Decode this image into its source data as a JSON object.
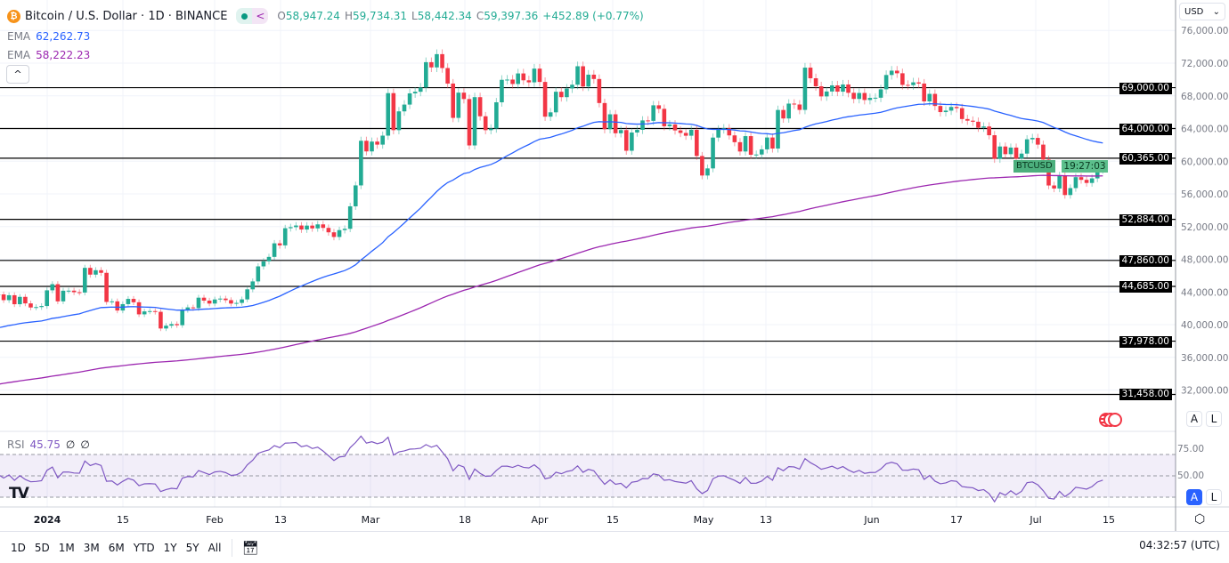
{
  "header": {
    "title": "Bitcoin / U.S. Dollar",
    "sep": "·",
    "interval": "1D",
    "exchange": "BINANCE",
    "ohlc": {
      "o_label": "O",
      "o": "58,947.24",
      "h_label": "H",
      "h": "59,734.31",
      "l_label": "L",
      "l": "58,442.34",
      "c_label": "C",
      "c": "59,397.36",
      "change": "+452.89 (+0.77%)"
    }
  },
  "indicators": {
    "ema1": {
      "label": "EMA",
      "value": "62,262.73",
      "color": "#2962ff"
    },
    "ema2": {
      "label": "EMA",
      "value": "58,222.23",
      "color": "#9c27b0"
    },
    "rsi": {
      "label": "RSI",
      "value": "45.75",
      "extra1": "∅",
      "extra2": "∅",
      "color": "#7e57c2"
    }
  },
  "price_axis": {
    "currency": "USD",
    "ticks": [
      "76,000.00",
      "72,000.00",
      "68,000.00",
      "64,000.00",
      "60,000.00",
      "56,000.00",
      "52,000.00",
      "48,000.00",
      "44,000.00",
      "40,000.00",
      "36,000.00",
      "32,000.00"
    ],
    "symbol_label": "BTCUSD",
    "countdown": "19:27:03",
    "auto": "A",
    "log": "L"
  },
  "rsi_axis": {
    "ticks": [
      "75.00",
      "50.00"
    ],
    "auto": "A",
    "log": "L"
  },
  "levels": [
    "69,000.00",
    "64,000.00",
    "60,365.00",
    "52,884.00",
    "47,860.00",
    "44,685.00",
    "37,978.00",
    "31,458.00"
  ],
  "time_axis": [
    "2024",
    "15",
    "Feb",
    "13",
    "Mar",
    "18",
    "Apr",
    "15",
    "May",
    "13",
    "Jun",
    "17",
    "Jul",
    "15"
  ],
  "ranges": [
    "1D",
    "5D",
    "1M",
    "3M",
    "6M",
    "YTD",
    "1Y",
    "5Y",
    "All"
  ],
  "clock": "04:32:57 (UTC)",
  "colors": {
    "up": "#22ab94",
    "down": "#f23645",
    "ema1": "#2962ff",
    "ema2": "#9c27b0",
    "rsi": "#7e57c2",
    "accent": "#2962ff"
  },
  "icons": {
    "symbol": "bitcoin-icon",
    "date_range": "calendar-icon",
    "settings": "gear-icon",
    "events": "us-flag-icon",
    "logo": "tradingview-logo"
  },
  "chart_data": {
    "type": "candlestick",
    "first_date": "2023-12-23",
    "last_date": "2024-07-14",
    "first_open": 43700,
    "last_open": 58947.24,
    "ylim": [
      30000,
      77000
    ],
    "rsi_period": 14,
    "ema_start": [
      39450,
      32600
    ],
    "ema_periods": [
      50,
      200
    ],
    "grid": true,
    "close": [
      43700,
      43000,
      43600,
      42500,
      43400,
      42600,
      42100,
      42150,
      42280,
      44200,
      44950,
      42850,
      44150,
      44160,
      43970,
      43930,
      46950,
      46120,
      46660,
      46340,
      42780,
      42850,
      41730,
      42510,
      43150,
      42740,
      41260,
      41620,
      41660,
      41570,
      39530,
      39870,
      40070,
      39930,
      41800,
      42110,
      42030,
      43300,
      42940,
      42580,
      43080,
      43190,
      43000,
      42580,
      42660,
      43090,
      44320,
      45290,
      47130,
      47750,
      48290,
      49950,
      49700,
      51800,
      51930,
      52130,
      51640,
      52120,
      51780,
      52270,
      51840,
      51300,
      50730,
      51570,
      51730,
      54480,
      57040,
      62500,
      61200,
      62400,
      62030,
      63130,
      68330,
      63800,
      66100,
      66930,
      68300,
      68500,
      69020,
      72120,
      71480,
      73100,
      71400,
      69500,
      65300,
      68390,
      67610,
      61930,
      67840,
      65500,
      63800,
      64000,
      67210,
      69960,
      69990,
      69450,
      70740,
      69900,
      69650,
      71330,
      69700,
      65450,
      65980,
      68500,
      67840,
      68900,
      69360,
      71620,
      69140,
      70590,
      70060,
      67120,
      63920,
      65740,
      63420,
      63810,
      61280,
      63510,
      63840,
      64990,
      64940,
      66840,
      66410,
      64280,
      64500,
      63770,
      63460,
      63120,
      63840,
      60640,
      58250,
      59120,
      62890,
      63890,
      64030,
      63160,
      62330,
      61190,
      63070,
      60790,
      60820,
      61450,
      62900,
      61550,
      66270,
      65230,
      67050,
      66940,
      66280,
      71450,
      70150,
      69170,
      67930,
      68530,
      69280,
      68510,
      69390,
      68370,
      67620,
      68350,
      67490,
      67750,
      67770,
      68800,
      70550,
      71080,
      70760,
      69340,
      69310,
      69650,
      69500,
      67320,
      68240,
      66760,
      66010,
      66190,
      66640,
      66490,
      65160,
      64960,
      64830,
      64100,
      64250,
      63180,
      60280,
      61800,
      60860,
      61670,
      60320,
      60930,
      62680,
      62850,
      62030,
      60200,
      57030,
      56660,
      58240,
      55860,
      56710,
      58050,
      57720,
      57340,
      57900,
      58950,
      59397.36
    ],
    "levels": [
      69000,
      64000,
      60365,
      52884,
      47860,
      44685,
      37978,
      31458
    ],
    "rsi_bands": [
      70,
      50,
      30
    ]
  }
}
